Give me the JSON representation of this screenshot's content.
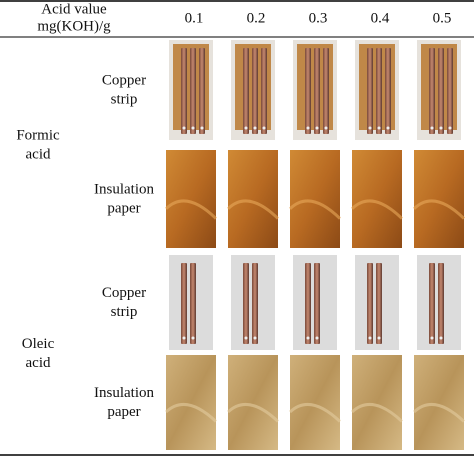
{
  "table": {
    "header": {
      "label": [
        "Acid value",
        "mg(KOH)/g"
      ],
      "columns": [
        "0.1",
        "0.2",
        "0.3",
        "0.4",
        "0.5"
      ]
    },
    "groups": [
      {
        "label": [
          "Formic",
          "acid"
        ],
        "rows": [
          [
            "Copper",
            "strip"
          ],
          [
            "Insulation",
            "paper"
          ]
        ]
      },
      {
        "label": [
          "Oleic",
          "acid"
        ],
        "rows": [
          [
            "Copper",
            "strip"
          ],
          [
            "Insulation",
            "paper"
          ]
        ]
      }
    ]
  }
}
